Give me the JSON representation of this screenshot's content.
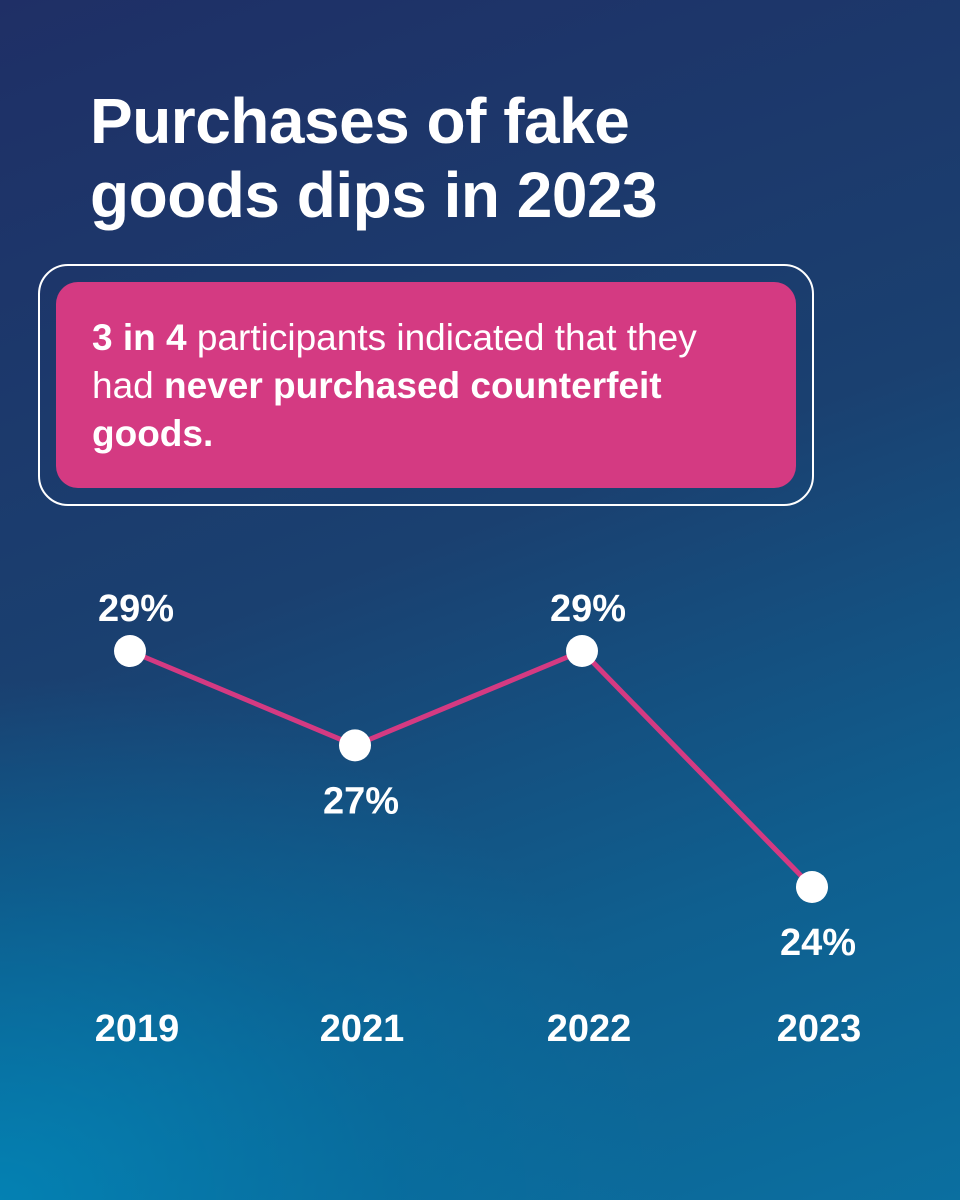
{
  "title_line1": "Purchases of fake",
  "title_line2": "goods dips in 2023",
  "callout": {
    "bold1": "3 in 4",
    "text1": " participants indicated that they had ",
    "bold2": "never purchased counterfeit goods."
  },
  "chart_data": {
    "type": "line",
    "categories": [
      "2019",
      "2021",
      "2022",
      "2023"
    ],
    "series": [
      {
        "values": [
          29,
          27,
          29,
          24
        ]
      }
    ],
    "point_labels": [
      "29%",
      "27%",
      "29%",
      "24%"
    ],
    "label_position": [
      "above",
      "below",
      "above",
      "below"
    ],
    "ylim": [
      24,
      29
    ],
    "grid": false,
    "line_color": "#d43a82",
    "marker_color": "#ffffff"
  }
}
